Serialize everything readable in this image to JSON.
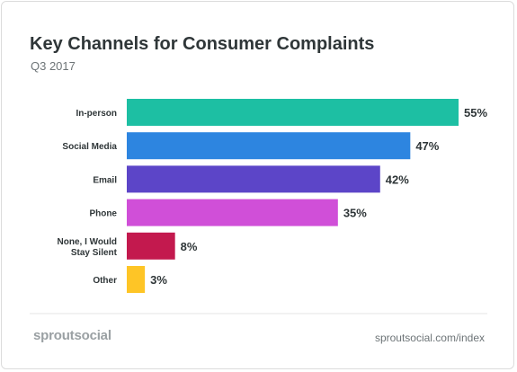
{
  "header": {
    "title": "Key Channels for Consumer Complaints",
    "subtitle": "Q3 2017"
  },
  "footer": {
    "brand": "sproutsocial",
    "url": "sproutsocial.com/index"
  },
  "chart_data": {
    "type": "bar",
    "orientation": "horizontal",
    "title": "Key Channels for Consumer Complaints",
    "subtitle": "Q3 2017",
    "categories": [
      [
        "In-person"
      ],
      [
        "Social Media"
      ],
      [
        "Email"
      ],
      [
        "Phone"
      ],
      [
        "None, I Would",
        "Stay Silent"
      ],
      [
        "Other"
      ]
    ],
    "values": [
      55,
      47,
      42,
      35,
      8,
      3
    ],
    "value_labels": [
      "55%",
      "47%",
      "42%",
      "35%",
      "8%",
      "3%"
    ],
    "colors": [
      "#1dbfa3",
      "#2d85e0",
      "#5c45c8",
      "#d04fd8",
      "#c3194e",
      "#fec526"
    ],
    "xlim": [
      0,
      55
    ],
    "grid": false,
    "legend": "none"
  }
}
